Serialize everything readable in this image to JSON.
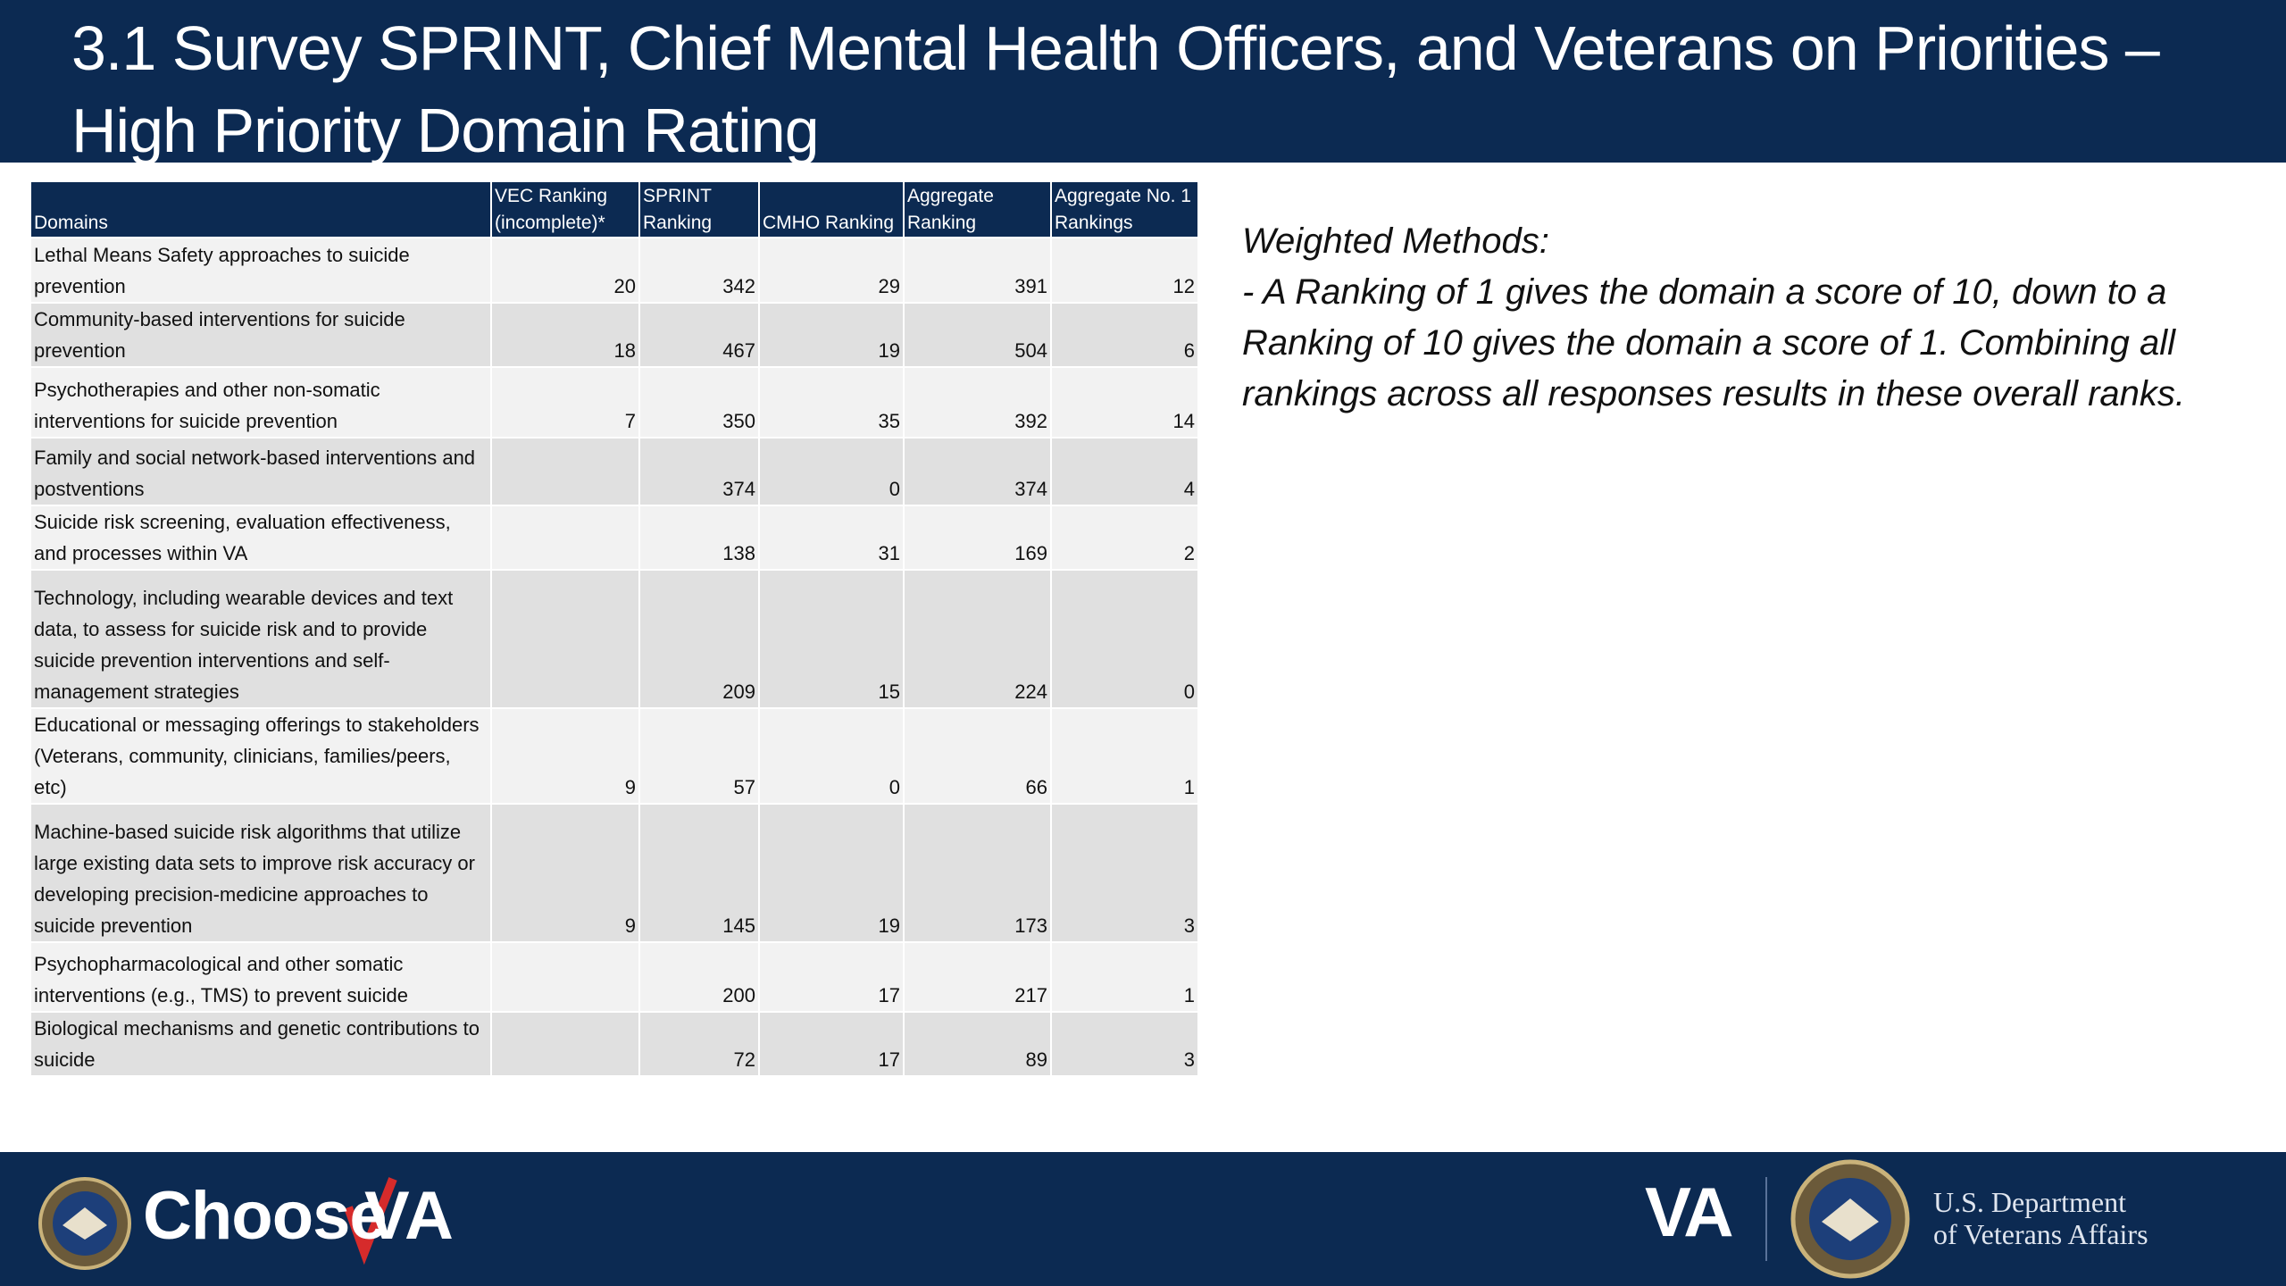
{
  "header": {
    "title": "3.1 Survey SPRINT, Chief Mental Health Officers, and Veterans on Priorities – High Priority Domain Rating"
  },
  "table": {
    "columns": [
      "Domains",
      "VEC Ranking (incomplete)*",
      "SPRINT Ranking",
      "CMHO Ranking",
      "Aggregate Ranking",
      "Aggregate No. 1 Rankings"
    ],
    "rows": [
      [
        "Lethal Means Safety approaches to suicide prevention",
        20,
        342,
        29,
        391,
        12
      ],
      [
        "Community-based interventions for suicide prevention",
        18,
        467,
        19,
        504,
        6
      ],
      [
        "Psychotherapies and other non-somatic interventions for suicide prevention",
        7,
        350,
        35,
        392,
        14
      ],
      [
        "Family and social network-based interventions and postventions",
        null,
        374,
        0,
        374,
        4
      ],
      [
        "Suicide risk screening, evaluation effectiveness, and processes within VA",
        null,
        138,
        31,
        169,
        2
      ],
      [
        "Technology, including wearable devices and text data, to assess for suicide risk and to provide suicide prevention interventions and self-management strategies",
        null,
        209,
        15,
        224,
        0
      ],
      [
        "Educational or messaging offerings to stakeholders (Veterans, community, clinicians, families/peers, etc)",
        9,
        57,
        0,
        66,
        1
      ],
      [
        "Machine-based suicide risk algorithms that utilize large existing data sets to improve risk accuracy or developing precision-medicine approaches to suicide prevention",
        9,
        145,
        19,
        173,
        3
      ],
      [
        "Psychopharmacological and other somatic interventions (e.g., TMS) to prevent suicide",
        null,
        200,
        17,
        217,
        1
      ],
      [
        "Biological mechanisms and genetic contributions to suicide",
        null,
        72,
        17,
        89,
        3
      ]
    ]
  },
  "notes": {
    "heading": "Weighted Methods:",
    "text": "- A Ranking of 1 gives the domain a score of 10, down to a Ranking of 10 gives the domain a score of 1. Combining all rankings across all responses results in these overall ranks."
  },
  "footer": {
    "brand_word": "Choose",
    "brand_mark": "VA",
    "logo": "VA",
    "department_line1": "U.S. Department",
    "department_line2": "of Veterans Affairs"
  }
}
